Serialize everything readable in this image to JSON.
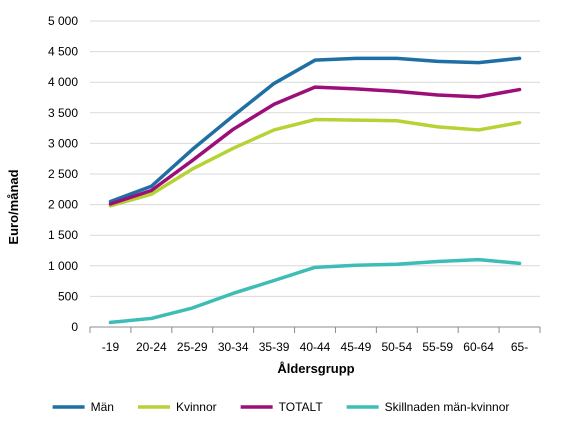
{
  "chart_data": {
    "type": "line",
    "title": "",
    "xlabel": "Åldersgrupp",
    "ylabel": "Euro/månad",
    "ylim": [
      0,
      5000
    ],
    "ytick_step": 500,
    "ytick_labels": [
      "0",
      "500",
      "1 000",
      "1 500",
      "2 000",
      "2 500",
      "3 000",
      "3 500",
      "4 000",
      "4 500",
      "5 000"
    ],
    "grid": true,
    "legend_position": "bottom",
    "categories": [
      "-19",
      "20-24",
      "25-29",
      "30-34",
      "35-39",
      "40-44",
      "45-49",
      "50-54",
      "55-59",
      "60-64",
      "65-"
    ],
    "series": [
      {
        "name": "Män",
        "color": "#1f6fa4",
        "values": [
          2050,
          2300,
          2900,
          3450,
          3980,
          4360,
          4390,
          4390,
          4340,
          4320,
          4390
        ]
      },
      {
        "name": "Kvinnor",
        "color": "#b5d334",
        "values": [
          1980,
          2170,
          2580,
          2920,
          3220,
          3390,
          3380,
          3370,
          3270,
          3220,
          3340
        ]
      },
      {
        "name": "TOTALT",
        "color": "#9c0f79",
        "values": [
          2010,
          2230,
          2720,
          3230,
          3640,
          3920,
          3890,
          3850,
          3790,
          3760,
          3880
        ]
      },
      {
        "name": "Skillnaden män-kvinnor",
        "color": "#3dbdb6",
        "values": [
          75,
          140,
          310,
          550,
          760,
          975,
          1010,
          1025,
          1070,
          1100,
          1040
        ]
      }
    ]
  }
}
